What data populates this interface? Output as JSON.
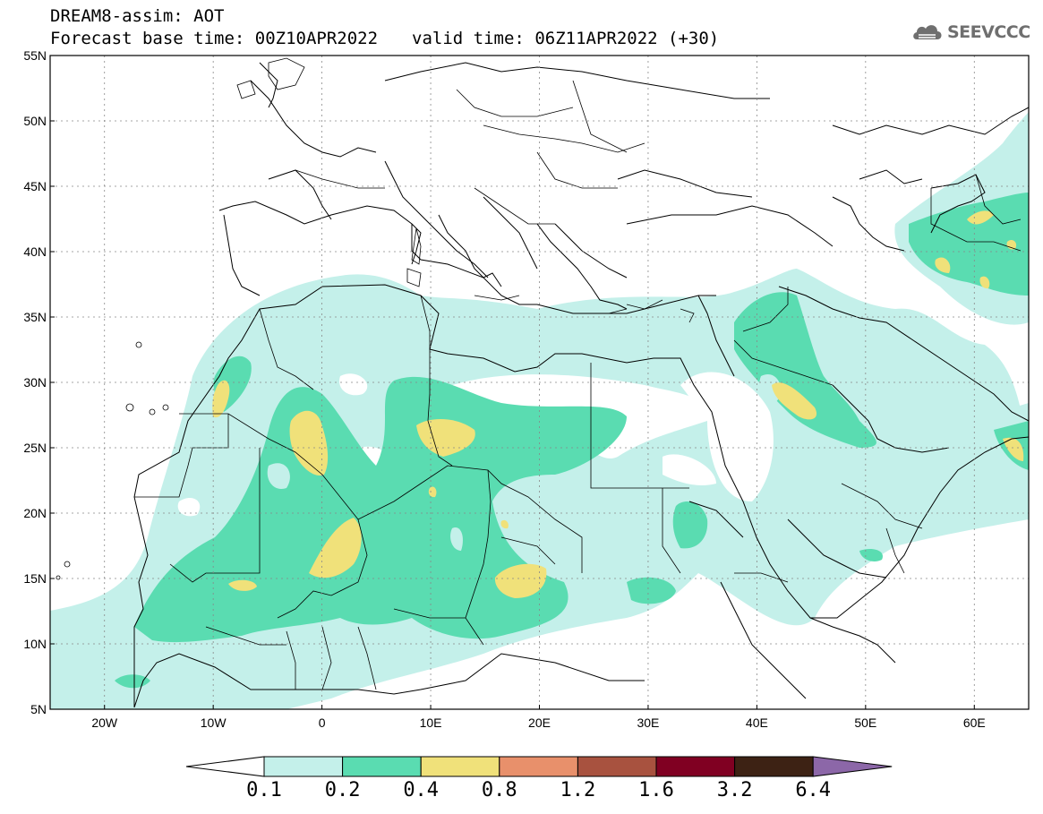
{
  "header": {
    "title_line1": "DREAM8-assim: AOT",
    "base_time": "Forecast base time: 00Z10APR2022",
    "valid_time": "valid time: 06Z11APR2022 (+30)",
    "logo_text": "SEEVCCC",
    "logo_icon": "cloud-logo-icon"
  },
  "map": {
    "lat_labels": [
      "55N",
      "50N",
      "45N",
      "40N",
      "35N",
      "30N",
      "25N",
      "20N",
      "15N",
      "10N",
      "5N"
    ],
    "lon_labels": [
      "20W",
      "10W",
      "0",
      "10E",
      "20E",
      "30E",
      "40E",
      "50E",
      "60E"
    ],
    "lat_range": [
      5,
      55
    ],
    "lon_range": [
      -25,
      65
    ],
    "grid": "dotted"
  },
  "colorbar": {
    "labels": [
      "0.1",
      "0.2",
      "0.4",
      "0.8",
      "1.2",
      "1.6",
      "3.2",
      "6.4"
    ],
    "colors": [
      "#c4f0ea",
      "#5adcb1",
      "#f0e17a",
      "#e8906b",
      "#a8523f",
      "#800022",
      "#3d2214",
      "#8c67a8"
    ]
  }
}
